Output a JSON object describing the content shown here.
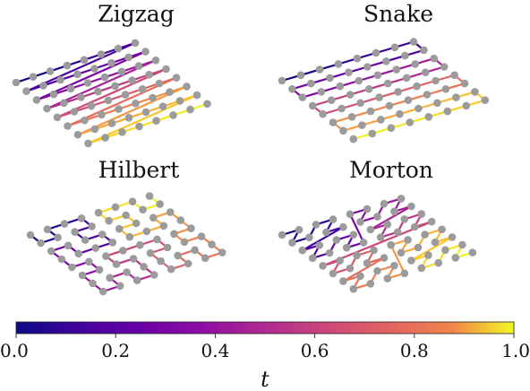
{
  "panels": [
    {
      "key": "zigzag",
      "title": "Zigzag"
    },
    {
      "key": "snake",
      "title": "Snake"
    },
    {
      "key": "hilbert",
      "title": "Hilbert"
    },
    {
      "key": "morton",
      "title": "Morton"
    }
  ],
  "grid": {
    "rows": 8,
    "cols": 8
  },
  "colorbar": {
    "colormap": "plasma",
    "ticks": [
      "0.0",
      "0.2",
      "0.4",
      "0.6",
      "0.8",
      "1.0"
    ],
    "label": "t",
    "range": [
      0,
      1
    ]
  },
  "colors": {
    "node": "#9b9b9b"
  }
}
